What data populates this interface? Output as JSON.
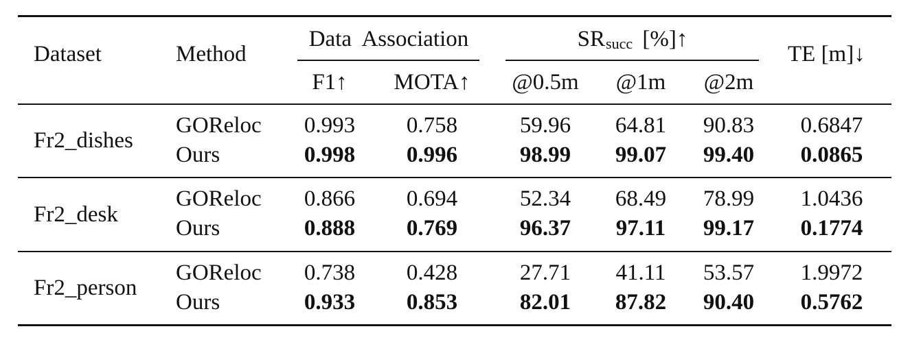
{
  "header": {
    "dataset": "Dataset",
    "method": "Method",
    "data_association": "Data Association",
    "f1": "F1↑",
    "mota": "MOTA↑",
    "sr_main": "SR",
    "sr_sub": "succ",
    "sr_suffix": "[%]↑",
    "sr_05": "@0.5m",
    "sr_1": "@1m",
    "sr_2": "@2m",
    "te": "TE [m]↓"
  },
  "rows": [
    {
      "dataset": "Fr2_dishes",
      "methods": [
        {
          "method": "GOReloc",
          "f1": "0.993",
          "mota": "0.758",
          "sr05": "59.96",
          "sr1": "64.81",
          "sr2": "90.83",
          "te": "0.6847"
        },
        {
          "method": "Ours",
          "f1": "0.998",
          "mota": "0.996",
          "sr05": "98.99",
          "sr1": "99.07",
          "sr2": "99.40",
          "te": "0.0865"
        }
      ]
    },
    {
      "dataset": "Fr2_desk",
      "methods": [
        {
          "method": "GOReloc",
          "f1": "0.866",
          "mota": "0.694",
          "sr05": "52.34",
          "sr1": "68.49",
          "sr2": "78.99",
          "te": "1.0436"
        },
        {
          "method": "Ours",
          "f1": "0.888",
          "mota": "0.769",
          "sr05": "96.37",
          "sr1": "97.11",
          "sr2": "99.17",
          "te": "0.1774"
        }
      ]
    },
    {
      "dataset": "Fr2_person",
      "methods": [
        {
          "method": "GOReloc",
          "f1": "0.738",
          "mota": "0.428",
          "sr05": "27.71",
          "sr1": "41.11",
          "sr2": "53.57",
          "te": "1.9972"
        },
        {
          "method": "Ours",
          "f1": "0.933",
          "mota": "0.853",
          "sr05": "82.01",
          "sr1": "87.82",
          "sr2": "90.40",
          "te": "0.5762"
        }
      ]
    }
  ]
}
